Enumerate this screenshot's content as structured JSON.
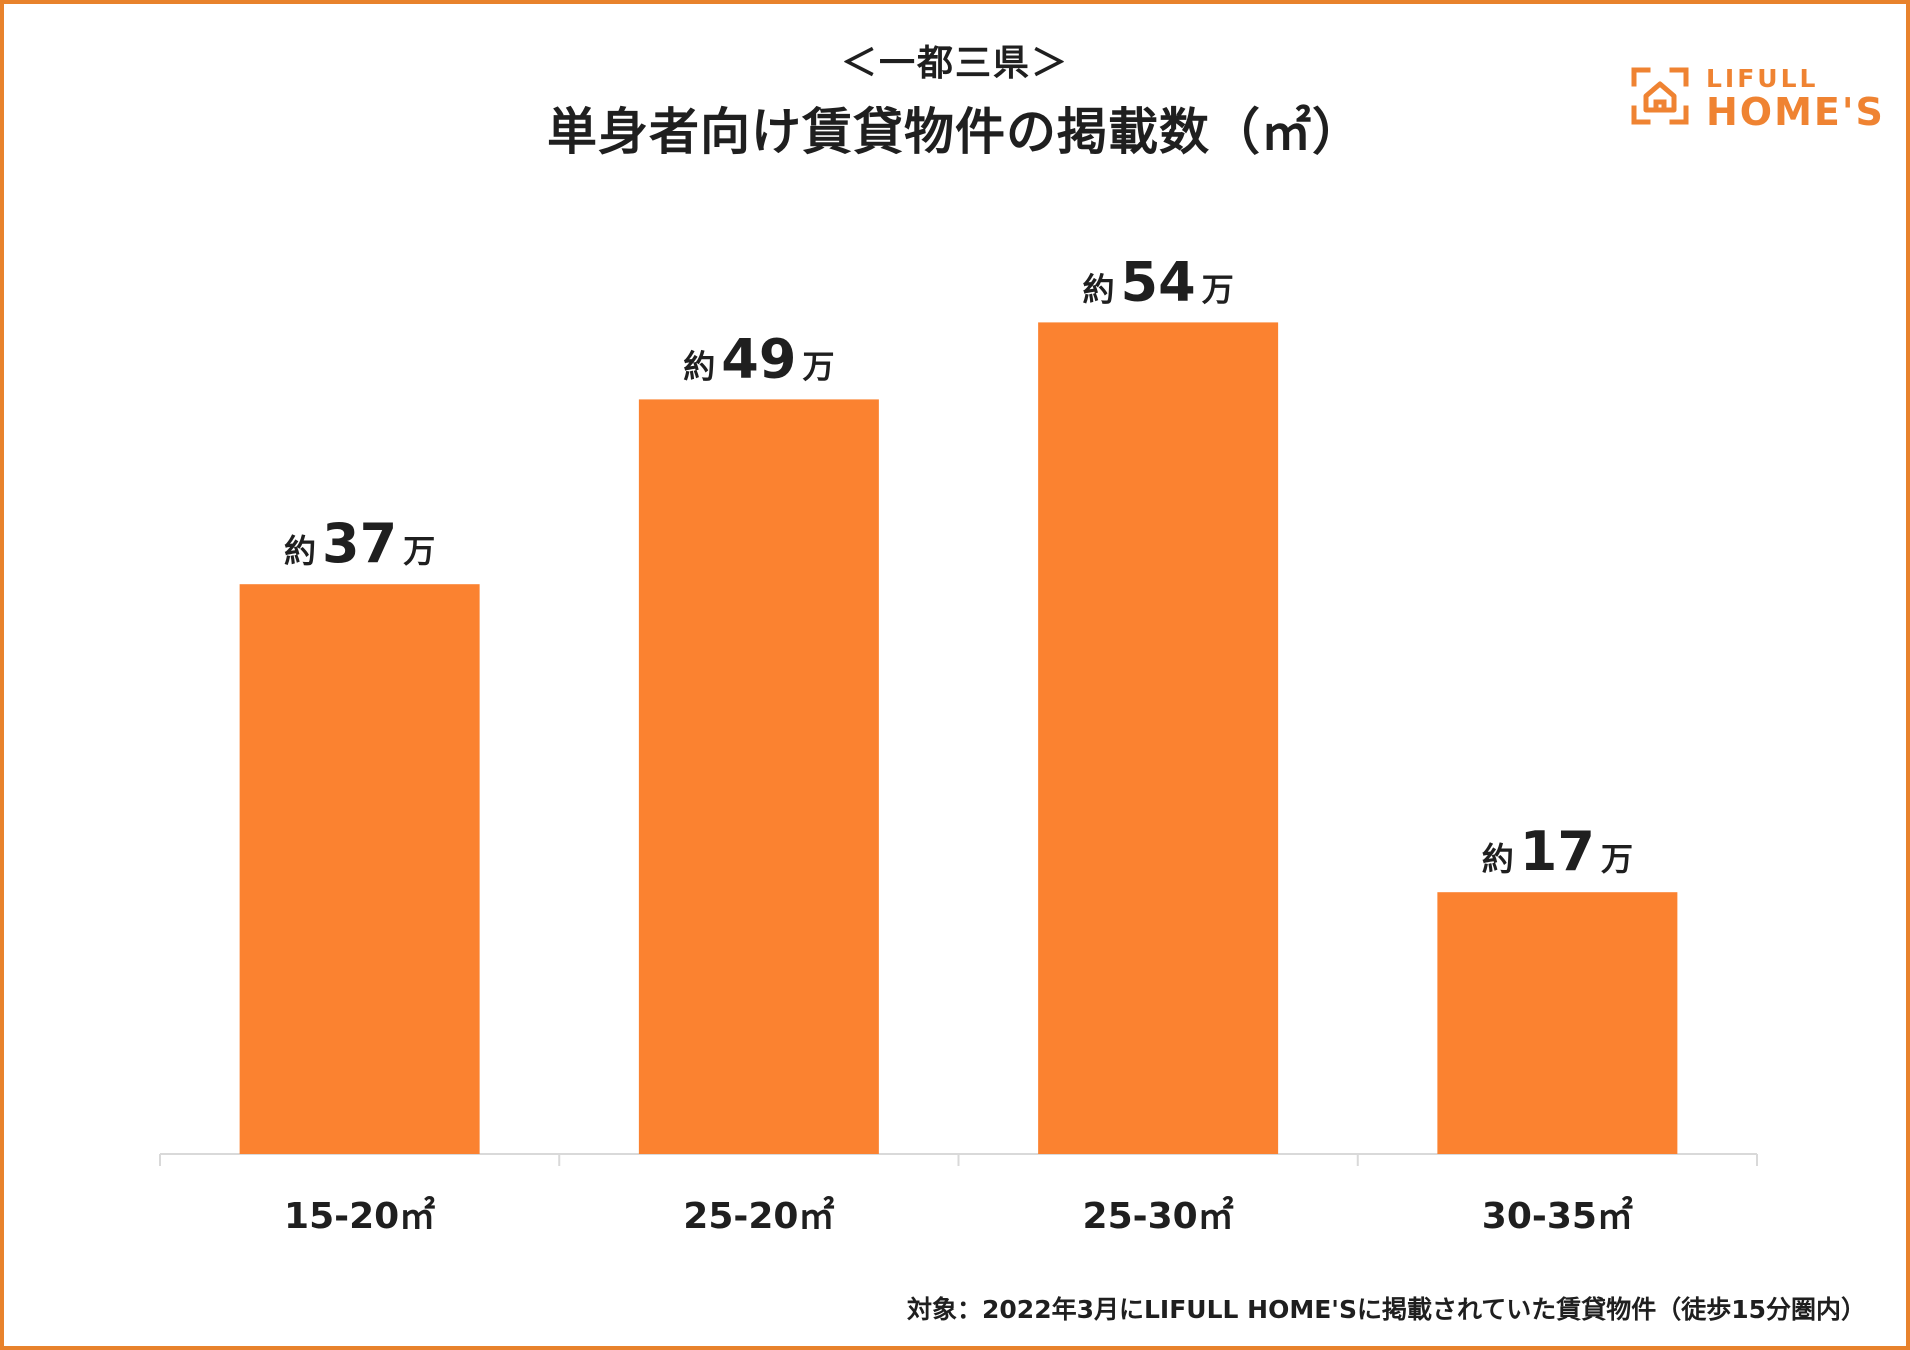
{
  "header": {
    "subtitle": "＜一都三県＞",
    "title": "単身者向け賃貸物件の掲載数（㎡）"
  },
  "logo": {
    "icon": "house-frame-icon",
    "line1": "LIFULL",
    "line2": "HOME'S",
    "color": "#ef8332"
  },
  "colors": {
    "bar": "#fb8230",
    "frame": "#e8822c",
    "text": "#1f1f1f",
    "axis": "#d9d9d9"
  },
  "chart_data": {
    "type": "bar",
    "title": "単身者向け賃貸物件の掲載数（㎡）",
    "subtitle": "＜一都三県＞",
    "categories": [
      "15-20㎡",
      "25-20㎡",
      "25-30㎡",
      "30-35㎡"
    ],
    "values": [
      37,
      49,
      54,
      17
    ],
    "value_labels": [
      {
        "prefix": "約",
        "number": "37",
        "suffix": "万"
      },
      {
        "prefix": "約",
        "number": "49",
        "suffix": "万"
      },
      {
        "prefix": "約",
        "number": "54",
        "suffix": "万"
      },
      {
        "prefix": "約",
        "number": "17",
        "suffix": "万"
      }
    ],
    "ylim": [
      0,
      60
    ],
    "grid": false,
    "xlabel": "",
    "ylabel": ""
  },
  "footnote": "対象：2022年3月にLIFULL HOME'Sに掲載されていた賃貸物件（徒歩15分圏内）"
}
